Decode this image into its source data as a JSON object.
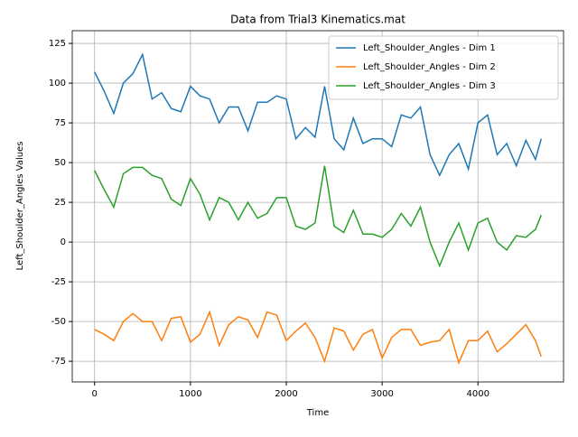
{
  "chart_data": {
    "type": "line",
    "title": "Data from Trial3 Kinematics.mat",
    "xlabel": "Time",
    "ylabel": "Left_Shoulder_Angles Values",
    "x": [
      0,
      100,
      200,
      300,
      400,
      500,
      600,
      700,
      800,
      900,
      1000,
      1100,
      1200,
      1300,
      1400,
      1500,
      1600,
      1700,
      1800,
      1900,
      2000,
      2100,
      2200,
      2300,
      2400,
      2500,
      2600,
      2700,
      2800,
      2900,
      3000,
      3100,
      3200,
      3300,
      3400,
      3500,
      3600,
      3700,
      3800,
      3900,
      4000,
      4100,
      4200,
      4300,
      4400,
      4500,
      4600,
      4660
    ],
    "series": [
      {
        "name": "Left_Shoulder_Angles - Dim 1",
        "color": "#1f77b4",
        "values": [
          107,
          95,
          81,
          100,
          106,
          118,
          90,
          94,
          84,
          82,
          98,
          92,
          90,
          75,
          85,
          85,
          70,
          88,
          88,
          92,
          90,
          65,
          72,
          66,
          98,
          65,
          58,
          78,
          62,
          65,
          65,
          60,
          80,
          78,
          85,
          55,
          42,
          55,
          62,
          46,
          75,
          80,
          55,
          62,
          48,
          64,
          52,
          65
        ]
      },
      {
        "name": "Left_Shoulder_Angles - Dim 2",
        "color": "#ff7f0e",
        "values": [
          -55,
          -58,
          -62,
          -50,
          -45,
          -50,
          -50,
          -62,
          -48,
          -47,
          -63,
          -58,
          -44,
          -65,
          -52,
          -47,
          -49,
          -60,
          -44,
          -46,
          -62,
          -56,
          -51,
          -60,
          -75,
          -54,
          -56,
          -68,
          -58,
          -55,
          -73,
          -60,
          -55,
          -55,
          -65,
          -63,
          -62,
          -55,
          -76,
          -62,
          -62,
          -56,
          -69,
          -64,
          -58,
          -52,
          -62,
          -72
        ]
      },
      {
        "name": "Left_Shoulder_Angles - Dim 3",
        "color": "#2ca02c",
        "values": [
          45,
          33,
          22,
          43,
          47,
          47,
          42,
          40,
          27,
          23,
          40,
          30,
          14,
          28,
          25,
          14,
          25,
          15,
          18,
          28,
          28,
          10,
          8,
          12,
          48,
          10,
          6,
          20,
          5,
          5,
          3,
          8,
          18,
          10,
          22,
          0,
          -15,
          0,
          12,
          -5,
          12,
          15,
          0,
          -5,
          4,
          3,
          8,
          17
        ]
      }
    ],
    "xlim": [
      -233,
      4893
    ],
    "xticks": [
      0,
      1000,
      2000,
      3000,
      4000
    ],
    "ylim": [
      -88,
      133
    ],
    "yticks": [
      -75,
      -50,
      -25,
      0,
      25,
      50,
      75,
      100,
      125
    ],
    "grid": true,
    "legend": "upper-right"
  }
}
